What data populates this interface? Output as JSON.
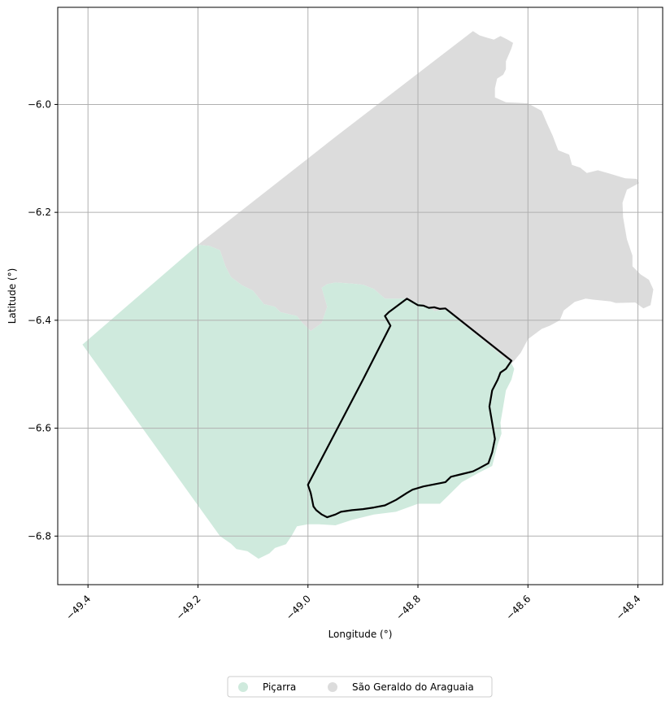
{
  "map": {
    "xlabel": "Longitude (°)",
    "ylabel": "Latitude (°)",
    "xlim": [
      -49.455,
      -48.355
    ],
    "ylim": [
      -6.89,
      -5.82
    ],
    "grid": true,
    "x_ticks": [
      {
        "value": -49.4,
        "label": "−49.4"
      },
      {
        "value": -49.2,
        "label": "−49.2"
      },
      {
        "value": -49.0,
        "label": "−49.0"
      },
      {
        "value": -48.8,
        "label": "−48.8"
      },
      {
        "value": -48.6,
        "label": "−48.6"
      },
      {
        "value": -48.4,
        "label": "−48.4"
      }
    ],
    "y_ticks": [
      {
        "value": -6.0,
        "label": "−6.0"
      },
      {
        "value": -6.2,
        "label": "−6.2"
      },
      {
        "value": -6.4,
        "label": "−6.4"
      },
      {
        "value": -6.6,
        "label": "−6.6"
      },
      {
        "value": -6.8,
        "label": "−6.8"
      }
    ],
    "legend": {
      "placement": "bottom-center",
      "entries": [
        {
          "label": "Piçarra",
          "color": "#cfeadd"
        },
        {
          "label": "São Geraldo do Araguaia",
          "color": "#dcdcdc"
        }
      ]
    },
    "regions": [
      {
        "name": "São Geraldo do Araguaia",
        "color": "#dcdcdc",
        "coords": [
          [
            -49.2,
            -6.26
          ],
          [
            -48.95,
            -6.06
          ],
          [
            -48.7,
            -5.864
          ],
          [
            -48.688,
            -5.872
          ],
          [
            -48.675,
            -5.876
          ],
          [
            -48.662,
            -5.88
          ],
          [
            -48.65,
            -5.873
          ],
          [
            -48.637,
            -5.88
          ],
          [
            -48.627,
            -5.886
          ],
          [
            -48.63,
            -5.896
          ],
          [
            -48.64,
            -5.92
          ],
          [
            -48.64,
            -5.935
          ],
          [
            -48.645,
            -5.945
          ],
          [
            -48.656,
            -5.952
          ],
          [
            -48.66,
            -5.97
          ],
          [
            -48.66,
            -5.987
          ],
          [
            -48.64,
            -5.996
          ],
          [
            -48.62,
            -5.997
          ],
          [
            -48.6,
            -5.998
          ],
          [
            -48.575,
            -6.012
          ],
          [
            -48.565,
            -6.036
          ],
          [
            -48.555,
            -6.058
          ],
          [
            -48.545,
            -6.085
          ],
          [
            -48.525,
            -6.093
          ],
          [
            -48.52,
            -6.112
          ],
          [
            -48.505,
            -6.117
          ],
          [
            -48.493,
            -6.127
          ],
          [
            -48.473,
            -6.122
          ],
          [
            -48.452,
            -6.128
          ],
          [
            -48.423,
            -6.137
          ],
          [
            -48.402,
            -6.138
          ],
          [
            -48.398,
            -6.146
          ],
          [
            -48.42,
            -6.158
          ],
          [
            -48.428,
            -6.182
          ],
          [
            -48.427,
            -6.209
          ],
          [
            -48.42,
            -6.25
          ],
          [
            -48.41,
            -6.28
          ],
          [
            -48.41,
            -6.3
          ],
          [
            -48.395,
            -6.315
          ],
          [
            -48.38,
            -6.325
          ],
          [
            -48.372,
            -6.343
          ],
          [
            -48.377,
            -6.372
          ],
          [
            -48.39,
            -6.378
          ],
          [
            -48.405,
            -6.367
          ],
          [
            -48.44,
            -6.368
          ],
          [
            -48.45,
            -6.365
          ],
          [
            -48.48,
            -6.362
          ],
          [
            -48.495,
            -6.36
          ],
          [
            -48.515,
            -6.366
          ],
          [
            -48.535,
            -6.382
          ],
          [
            -48.542,
            -6.4
          ],
          [
            -48.56,
            -6.41
          ],
          [
            -48.575,
            -6.416
          ],
          [
            -48.6,
            -6.435
          ],
          [
            -48.613,
            -6.46
          ],
          [
            -48.625,
            -6.475
          ],
          [
            -48.63,
            -6.48
          ],
          [
            -48.75,
            -6.38
          ],
          [
            -48.77,
            -6.383
          ],
          [
            -48.78,
            -6.375
          ],
          [
            -48.82,
            -6.36
          ],
          [
            -48.83,
            -6.36
          ],
          [
            -48.86,
            -6.36
          ],
          [
            -48.88,
            -6.342
          ],
          [
            -48.9,
            -6.334
          ],
          [
            -48.92,
            -6.332
          ],
          [
            -48.95,
            -6.33
          ],
          [
            -48.965,
            -6.333
          ],
          [
            -48.975,
            -6.34
          ],
          [
            -48.965,
            -6.375
          ],
          [
            -48.975,
            -6.405
          ],
          [
            -48.995,
            -6.42
          ],
          [
            -49.01,
            -6.405
          ],
          [
            -49.02,
            -6.392
          ],
          [
            -49.05,
            -6.385
          ],
          [
            -49.06,
            -6.375
          ],
          [
            -49.08,
            -6.37
          ],
          [
            -49.1,
            -6.345
          ],
          [
            -49.12,
            -6.335
          ],
          [
            -49.14,
            -6.32
          ],
          [
            -49.15,
            -6.3
          ],
          [
            -49.16,
            -6.27
          ],
          [
            -49.18,
            -6.262
          ]
        ]
      },
      {
        "name": "Piçarra",
        "color": "#cfeadd",
        "coords": [
          [
            -49.41,
            -6.445
          ],
          [
            -49.2,
            -6.26
          ],
          [
            -49.18,
            -6.262
          ],
          [
            -49.16,
            -6.27
          ],
          [
            -49.15,
            -6.3
          ],
          [
            -49.14,
            -6.32
          ],
          [
            -49.12,
            -6.335
          ],
          [
            -49.1,
            -6.345
          ],
          [
            -49.08,
            -6.37
          ],
          [
            -49.06,
            -6.375
          ],
          [
            -49.05,
            -6.385
          ],
          [
            -49.02,
            -6.392
          ],
          [
            -49.01,
            -6.405
          ],
          [
            -48.995,
            -6.42
          ],
          [
            -48.975,
            -6.405
          ],
          [
            -48.965,
            -6.375
          ],
          [
            -48.975,
            -6.34
          ],
          [
            -48.965,
            -6.333
          ],
          [
            -48.95,
            -6.33
          ],
          [
            -48.92,
            -6.332
          ],
          [
            -48.9,
            -6.334
          ],
          [
            -48.88,
            -6.342
          ],
          [
            -48.86,
            -6.36
          ],
          [
            -48.83,
            -6.36
          ],
          [
            -48.82,
            -6.36
          ],
          [
            -48.78,
            -6.375
          ],
          [
            -48.77,
            -6.383
          ],
          [
            -48.75,
            -6.38
          ],
          [
            -48.63,
            -6.48
          ],
          [
            -48.625,
            -6.49
          ],
          [
            -48.63,
            -6.51
          ],
          [
            -48.64,
            -6.53
          ],
          [
            -48.645,
            -6.56
          ],
          [
            -48.65,
            -6.59
          ],
          [
            -48.648,
            -6.61
          ],
          [
            -48.655,
            -6.63
          ],
          [
            -48.66,
            -6.65
          ],
          [
            -48.665,
            -6.67
          ],
          [
            -48.69,
            -6.683
          ],
          [
            -48.72,
            -6.7
          ],
          [
            -48.74,
            -6.72
          ],
          [
            -48.76,
            -6.74
          ],
          [
            -48.8,
            -6.74
          ],
          [
            -48.84,
            -6.755
          ],
          [
            -48.88,
            -6.76
          ],
          [
            -48.92,
            -6.77
          ],
          [
            -48.95,
            -6.78
          ],
          [
            -48.98,
            -6.778
          ],
          [
            -49.0,
            -6.778
          ],
          [
            -49.02,
            -6.782
          ],
          [
            -49.03,
            -6.8
          ],
          [
            -49.04,
            -6.815
          ],
          [
            -49.06,
            -6.822
          ],
          [
            -49.07,
            -6.832
          ],
          [
            -49.09,
            -6.842
          ],
          [
            -49.11,
            -6.828
          ],
          [
            -49.13,
            -6.824
          ],
          [
            -49.14,
            -6.814
          ],
          [
            -49.16,
            -6.8
          ]
        ]
      }
    ],
    "outline": {
      "name": "Piçarra (outline)",
      "color": "#000000",
      "coords": [
        [
          -48.82,
          -6.36
        ],
        [
          -48.8,
          -6.372
        ],
        [
          -48.79,
          -6.373
        ],
        [
          -48.78,
          -6.377
        ],
        [
          -48.77,
          -6.376
        ],
        [
          -48.76,
          -6.379
        ],
        [
          -48.75,
          -6.378
        ],
        [
          -48.63,
          -6.475
        ],
        [
          -48.64,
          -6.49
        ],
        [
          -48.65,
          -6.497
        ],
        [
          -48.655,
          -6.51
        ],
        [
          -48.665,
          -6.53
        ],
        [
          -48.67,
          -6.56
        ],
        [
          -48.665,
          -6.59
        ],
        [
          -48.66,
          -6.62
        ],
        [
          -48.665,
          -6.645
        ],
        [
          -48.672,
          -6.665
        ],
        [
          -48.69,
          -6.675
        ],
        [
          -48.7,
          -6.68
        ],
        [
          -48.72,
          -6.685
        ],
        [
          -48.74,
          -6.69
        ],
        [
          -48.75,
          -6.7
        ],
        [
          -48.77,
          -6.704
        ],
        [
          -48.79,
          -6.708
        ],
        [
          -48.81,
          -6.714
        ],
        [
          -48.82,
          -6.72
        ],
        [
          -48.84,
          -6.733
        ],
        [
          -48.86,
          -6.743
        ],
        [
          -48.88,
          -6.747
        ],
        [
          -48.9,
          -6.75
        ],
        [
          -48.92,
          -6.752
        ],
        [
          -48.94,
          -6.755
        ],
        [
          -48.95,
          -6.76
        ],
        [
          -48.965,
          -6.765
        ],
        [
          -48.975,
          -6.76
        ],
        [
          -48.985,
          -6.752
        ],
        [
          -48.99,
          -6.745
        ],
        [
          -48.993,
          -6.73
        ],
        [
          -48.995,
          -6.72
        ],
        [
          -49.0,
          -6.705
        ],
        [
          -48.9,
          -6.51
        ],
        [
          -48.87,
          -6.45
        ],
        [
          -48.85,
          -6.41
        ],
        [
          -48.86,
          -6.392
        ],
        [
          -48.853,
          -6.385
        ]
      ]
    }
  }
}
